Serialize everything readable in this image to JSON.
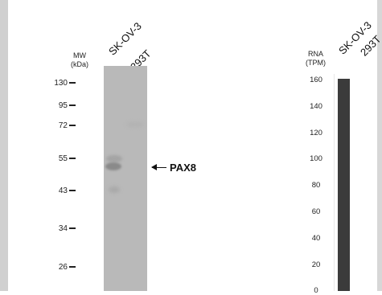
{
  "lanes": [
    "SK-OV-3",
    "293T"
  ],
  "western_blot": {
    "mw_header": [
      "MW",
      "(kDa)"
    ],
    "markers": [
      "130",
      "95",
      "72",
      "55",
      "43",
      "34",
      "26"
    ],
    "target_label": "PAX8"
  },
  "rna_panel": {
    "header": [
      "RNA",
      "(TPM)"
    ],
    "ticks": [
      "160",
      "140",
      "120",
      "100",
      "80",
      "60",
      "40",
      "20",
      "0"
    ]
  },
  "chart_data": {
    "type": "bar",
    "categories": [
      "SK-OV-3",
      "293T"
    ],
    "values": [
      158,
      0
    ],
    "ylabel": "RNA (TPM)",
    "ylim": [
      0,
      160
    ],
    "bar_color": "#3b3b3b"
  }
}
